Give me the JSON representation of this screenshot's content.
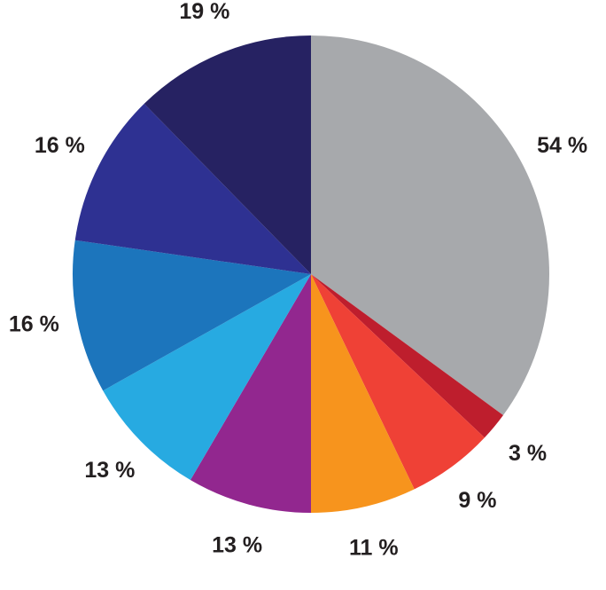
{
  "chart_data": {
    "type": "pie",
    "values": [
      54,
      3,
      9,
      11,
      13,
      13,
      16,
      16,
      19
    ],
    "value_labels": [
      "54 %",
      "3 %",
      "9 %",
      "11 %",
      "13 %",
      "13 %",
      "16 %",
      "16 %",
      "19 %"
    ],
    "colors": [
      "#a7a9ac",
      "#be1e2d",
      "#ef4136",
      "#f7941d",
      "#92278f",
      "#27aae1",
      "#1c75bc",
      "#2e3192",
      "#262262"
    ]
  }
}
